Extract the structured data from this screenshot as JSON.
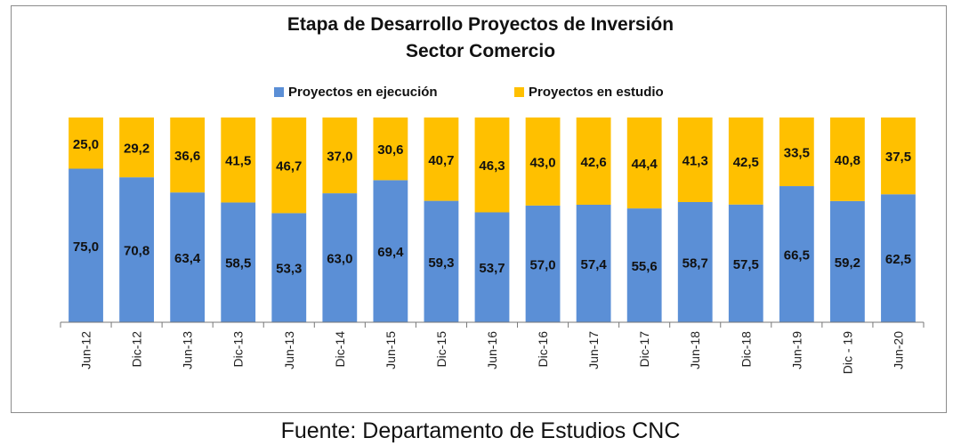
{
  "chart_data": {
    "type": "bar",
    "stacked": true,
    "percent_stacked": true,
    "title": "Etapa de Desarrollo Proyectos de Inversión",
    "subtitle": "Sector Comercio",
    "categories": [
      "Jun-12",
      "Dic-12",
      "Jun-13",
      "Dic-13",
      "Jun-13",
      "Dic-14",
      "Jun-15",
      "Dic-15",
      "Jun-16",
      "Dic-16",
      "Jun-17",
      "Dic-17",
      "Jun-18",
      "Dic-18",
      "Jun-19",
      "Dic - 19",
      "Jun-20"
    ],
    "series": [
      {
        "name": "Proyectos en ejecución",
        "color": "#5b8fd6",
        "values": [
          75.0,
          70.8,
          63.4,
          58.5,
          53.3,
          63.0,
          69.4,
          59.3,
          53.7,
          57.0,
          57.4,
          55.6,
          58.7,
          57.5,
          66.5,
          59.2,
          62.5
        ],
        "labels": [
          "75,0",
          "70,8",
          "63,4",
          "58,5",
          "53,3",
          "63,0",
          "69,4",
          "59,3",
          "53,7",
          "57,0",
          "57,4",
          "55,6",
          "58,7",
          "57,5",
          "66,5",
          "59,2",
          "62,5"
        ]
      },
      {
        "name": "Proyectos en estudio",
        "color": "#ffc000",
        "values": [
          25.0,
          29.2,
          36.6,
          41.5,
          46.7,
          37.0,
          30.6,
          40.7,
          46.3,
          43.0,
          42.6,
          44.4,
          41.3,
          42.5,
          33.5,
          40.8,
          37.5
        ],
        "labels": [
          "25,0",
          "29,2",
          "36,6",
          "41,5",
          "46,7",
          "37,0",
          "30,6",
          "40,7",
          "46,3",
          "43,0",
          "42,6",
          "44,4",
          "41,3",
          "42,5",
          "33,5",
          "40,8",
          "37,5"
        ]
      }
    ],
    "ylim": [
      0,
      100
    ],
    "legend_position": "top",
    "grid": false
  },
  "source": "Fuente: Departamento de Estudios CNC"
}
